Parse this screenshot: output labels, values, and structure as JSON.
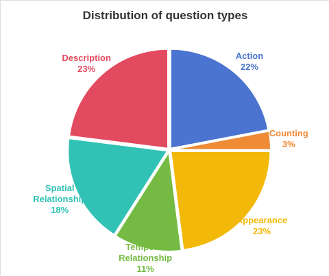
{
  "chart_data": {
    "type": "pie",
    "title": "Distribution of question types",
    "categories": [
      "Action",
      "Counting",
      "Appearance",
      "Temporal Relationship",
      "Spatial Relationship",
      "Description"
    ],
    "values": [
      22,
      3,
      23,
      11,
      18,
      23
    ],
    "value_labels": [
      "22%",
      "3%",
      "23%",
      "11%",
      "18%",
      "23%"
    ],
    "colors": [
      "#4a74cf",
      "#ef8a35",
      "#f2b90a",
      "#75bb43",
      "#31c2b5",
      "#e24a5f"
    ]
  }
}
